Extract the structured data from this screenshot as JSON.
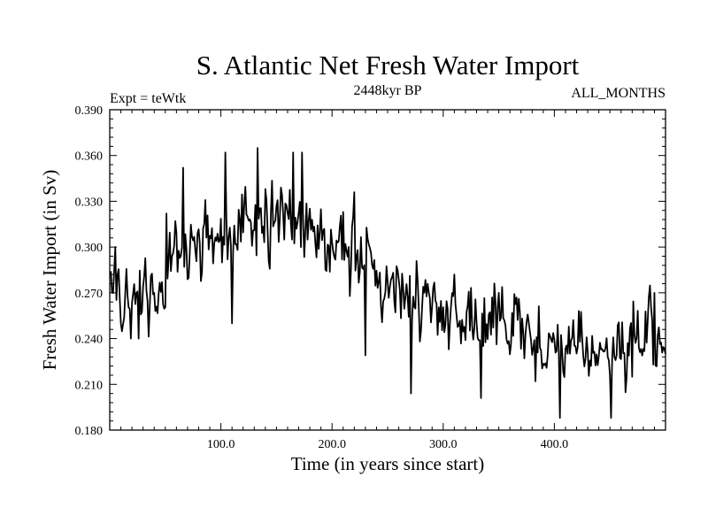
{
  "chart_data": {
    "type": "line",
    "title": "S. Atlantic Net Fresh Water Import",
    "subtitle": "2448kyr BP",
    "left_label": "Expt = teWtk",
    "right_label": "ALL_MONTHS",
    "xlabel": "Time (in years since start)",
    "ylabel": "Fresh Water Import (in Sv)",
    "xlim": [
      0,
      500
    ],
    "ylim": [
      0.18,
      0.39
    ],
    "x_ticks": [
      100,
      200,
      300,
      400
    ],
    "x_tick_labels": [
      "100.0",
      "200.0",
      "300.0",
      "400.0"
    ],
    "y_ticks": [
      0.18,
      0.21,
      0.24,
      0.27,
      0.3,
      0.33,
      0.36,
      0.39
    ],
    "y_tick_labels": [
      "0.180",
      "0.210",
      "0.240",
      "0.270",
      "0.300",
      "0.330",
      "0.360",
      "0.390"
    ],
    "grid": false,
    "line_color": "#000000",
    "series": [
      {
        "name": "Fresh Water Import",
        "x_start": 1,
        "x_step": 1,
        "anchors_x": [
          0,
          5,
          10,
          20,
          30,
          40,
          50,
          60,
          70,
          80,
          90,
          100,
          110,
          120,
          130,
          140,
          150,
          160,
          170,
          180,
          190,
          200,
          210,
          220,
          230,
          240,
          250,
          260,
          270,
          280,
          290,
          300,
          310,
          320,
          330,
          340,
          350,
          360,
          370,
          380,
          390,
          400,
          410,
          420,
          430,
          440,
          450,
          460,
          470,
          480,
          490,
          500
        ],
        "anchors_y": [
          0.28,
          0.276,
          0.27,
          0.266,
          0.264,
          0.265,
          0.28,
          0.296,
          0.302,
          0.3,
          0.305,
          0.312,
          0.31,
          0.318,
          0.32,
          0.316,
          0.32,
          0.322,
          0.318,
          0.31,
          0.305,
          0.302,
          0.3,
          0.292,
          0.288,
          0.28,
          0.272,
          0.27,
          0.268,
          0.27,
          0.265,
          0.262,
          0.258,
          0.255,
          0.25,
          0.252,
          0.248,
          0.246,
          0.244,
          0.242,
          0.24,
          0.236,
          0.238,
          0.236,
          0.234,
          0.232,
          0.228,
          0.234,
          0.238,
          0.24,
          0.242,
          0.24
        ],
        "noise": 0.016,
        "seed": 2448,
        "events": [
          {
            "x": 10,
            "y": 0.25
          },
          {
            "x": 19,
            "y": 0.24
          },
          {
            "x": 26,
            "y": 0.24
          },
          {
            "x": 51,
            "y": 0.322
          },
          {
            "x": 66,
            "y": 0.352
          },
          {
            "x": 104,
            "y": 0.362
          },
          {
            "x": 110,
            "y": 0.25
          },
          {
            "x": 133,
            "y": 0.365
          },
          {
            "x": 165,
            "y": 0.362
          },
          {
            "x": 173,
            "y": 0.362
          },
          {
            "x": 220,
            "y": 0.336
          },
          {
            "x": 230,
            "y": 0.229
          },
          {
            "x": 271,
            "y": 0.204
          },
          {
            "x": 334,
            "y": 0.201
          },
          {
            "x": 350,
            "y": 0.27
          },
          {
            "x": 383,
            "y": 0.212
          },
          {
            "x": 405,
            "y": 0.188
          },
          {
            "x": 451,
            "y": 0.188
          },
          {
            "x": 470,
            "y": 0.215
          },
          {
            "x": 490,
            "y": 0.27
          },
          {
            "x": 500,
            "y": 0.23
          }
        ]
      }
    ]
  }
}
